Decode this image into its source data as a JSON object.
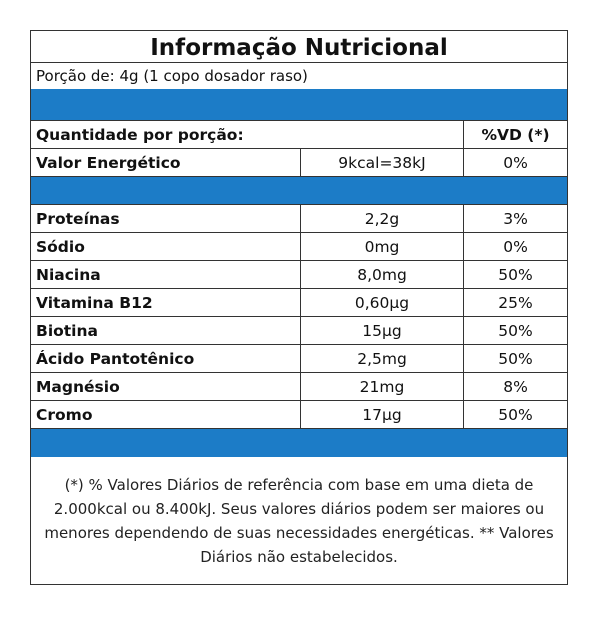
{
  "title": "Informação Nutricional",
  "portion": "Porção de: 4g (1 copo dosador raso)",
  "header": {
    "quantity_label": "Quantidade por porção:",
    "vd_label": "%VD (*)"
  },
  "energy": {
    "name": "Valor Energético",
    "amount": "9kcal=38kJ",
    "vd": "0%"
  },
  "nutrients": [
    {
      "name": "Proteínas",
      "amount": "2,2g",
      "vd": "3%"
    },
    {
      "name": "Sódio",
      "amount": "0mg",
      "vd": "0%"
    },
    {
      "name": "Niacina",
      "amount": "8,0mg",
      "vd": "50%"
    },
    {
      "name": "Vitamina B12",
      "amount": "0,60µg",
      "vd": "25%"
    },
    {
      "name": "Biotina",
      "amount": "15µg",
      "vd": "50%"
    },
    {
      "name": "Ácido Pantotênico",
      "amount": "2,5mg",
      "vd": "50%"
    },
    {
      "name": "Magnésio",
      "amount": "21mg",
      "vd": "8%"
    },
    {
      "name": "Cromo",
      "amount": "17µg",
      "vd": "50%"
    }
  ],
  "footnote": "(*) % Valores Diários de referência com base em uma dieta de 2.000kcal ou 8.400kJ. Seus valores diários podem ser maiores ou menores dependendo de suas necessidades energéticas. ** Valores Diários não estabelecidos.",
  "colors": {
    "band": "#1c7cc7",
    "border": "#333333"
  }
}
